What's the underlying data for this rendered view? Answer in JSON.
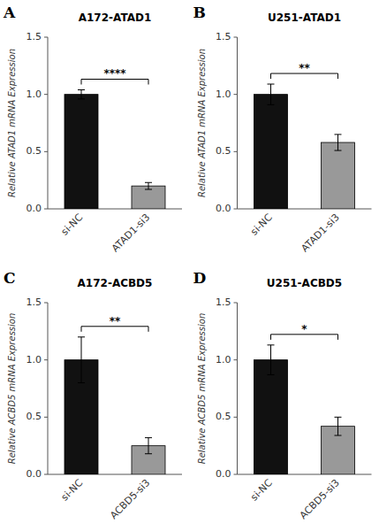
{
  "chart_data": [
    {
      "type": "bar",
      "panel_label": "A",
      "title": "A172-ATAD1",
      "y_label": "Relative ATAD1 mRNA Expression",
      "categories": [
        "si-NC",
        "ATAD1-si3"
      ],
      "values": [
        1.0,
        0.2
      ],
      "errors": [
        0.04,
        0.03
      ],
      "colors": [
        "#111111",
        "#999999"
      ],
      "annotations": [
        "****"
      ],
      "ylim": [
        0,
        1.5
      ],
      "yticks": [
        {
          "value": 0,
          "label": "0.0"
        },
        0.5,
        {
          "value": 1,
          "label": "1.0"
        },
        1.5
      ]
    },
    {
      "type": "bar",
      "panel_label": "B",
      "title": "U251-ATAD1",
      "y_label": "Relative ATAD1 mRNA Expression",
      "categories": [
        "si-NC",
        "ATAD1-si3"
      ],
      "values": [
        1.0,
        0.58
      ],
      "errors": [
        0.09,
        0.07
      ],
      "colors": [
        "#111111",
        "#999999"
      ],
      "annotations": [
        "**"
      ],
      "ylim": [
        0,
        1.5
      ],
      "yticks": [
        {
          "value": 0,
          "label": "0.0"
        },
        0.5,
        {
          "value": 1,
          "label": "1.0"
        },
        1.5
      ]
    },
    {
      "type": "bar",
      "panel_label": "C",
      "title": "A172-ACBD5",
      "y_label": "Relative ACBD5 mRNA Expression",
      "categories": [
        "si-NC",
        "ACBD5-si3"
      ],
      "values": [
        1.0,
        0.25
      ],
      "errors": [
        0.2,
        0.07
      ],
      "colors": [
        "#111111",
        "#999999"
      ],
      "annotations": [
        "**"
      ],
      "ylim": [
        0,
        1.5
      ],
      "yticks": [
        {
          "value": 0,
          "label": "0.0"
        },
        0.5,
        {
          "value": 1,
          "label": "1.0"
        },
        1.5
      ]
    },
    {
      "type": "bar",
      "panel_label": "D",
      "title": "U251-ACBD5",
      "y_label": "Relative ACBD5 mRNA Expression",
      "categories": [
        "si-NC",
        "ACBD5-si3"
      ],
      "values": [
        1.0,
        0.42
      ],
      "errors": [
        0.13,
        0.08
      ],
      "colors": [
        "#111111",
        "#999999"
      ],
      "annotations": [
        "*"
      ],
      "ylim": [
        0,
        1.5
      ],
      "yticks": [
        {
          "value": 0,
          "label": "0.0"
        },
        0.5,
        {
          "value": 1,
          "label": "1.0"
        },
        1.5
      ]
    }
  ]
}
